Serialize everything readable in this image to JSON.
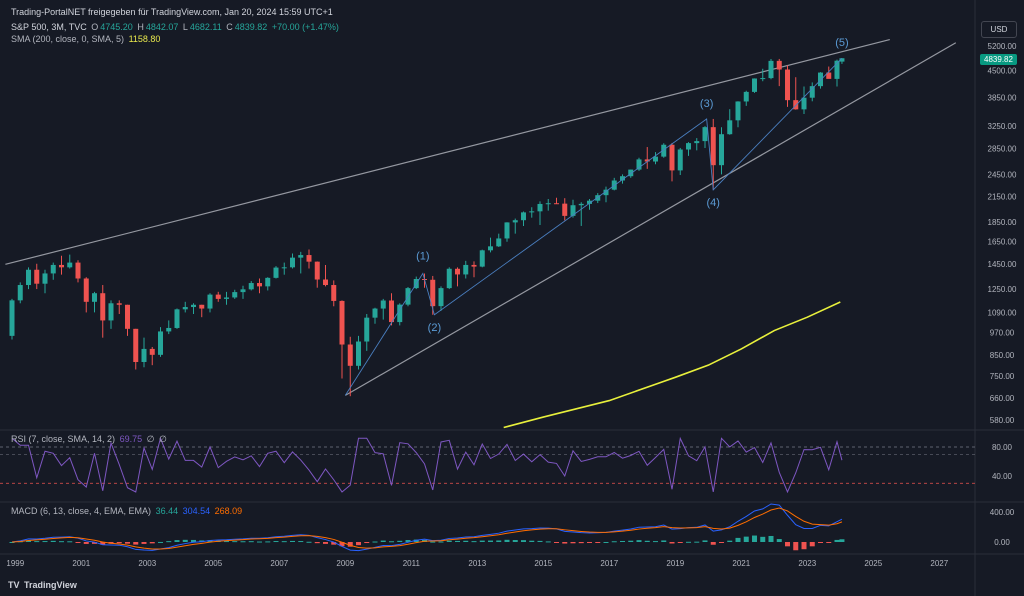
{
  "header": {
    "title": "Trading-PortalNET freigegeben für TradingView.com, Jan 20, 2024 15:59 UTC+1",
    "symbol": "S&P 500, 3M, TVC",
    "open_label": "O",
    "open": "4745.20",
    "high_label": "H",
    "high": "4842.07",
    "low_label": "L",
    "low": "4682.11",
    "close_label": "C",
    "close": "4839.82",
    "change": "+70.00 (+1.47%)",
    "sma_label": "SMA (200, close, 0, SMA, 5)",
    "sma_value": "1158.80"
  },
  "currency": "USD",
  "last_price": "4839.82",
  "rsi": {
    "label": "RSI (7, close, SMA, 14, 2)",
    "value": "69.75",
    "extra1": "∅",
    "extra2": "∅",
    "ticks": [
      "80.00",
      "40.00"
    ]
  },
  "macd": {
    "label": "MACD (6, 13, close, 4, EMA, EMA)",
    "hist": "36.44",
    "macd_value": "304.54",
    "signal_value": "268.09",
    "ticks": [
      "400.00",
      "0.00"
    ]
  },
  "brand": {
    "logo": "TV",
    "name": "TradingView"
  },
  "colors": {
    "background": "#161a25",
    "up": "#26a69a",
    "down": "#ef5350",
    "sma": "#e8f03c",
    "channel": "#9598a1",
    "wave": "#4a7fc0",
    "rsi": "#7e57c2",
    "macd": "#2962ff",
    "signal": "#ff6d00"
  },
  "chart_data": {
    "type": "candlestick",
    "y_scale": "log",
    "y_ticks": [
      5200,
      4500,
      3850,
      3250,
      2850,
      2450,
      2150,
      1850,
      1650,
      1450,
      1250,
      1090,
      970,
      850,
      750,
      660,
      580
    ],
    "x_ticks": [
      "1999",
      "2001",
      "2003",
      "2005",
      "2007",
      "2009",
      "2011",
      "2013",
      "2015",
      "2017",
      "2019",
      "2021",
      "2023",
      "2025",
      "2027"
    ],
    "wave_labels": [
      "(1)",
      "(2)",
      "(3)",
      "(4)",
      "(5)"
    ],
    "wave_points": [
      [
        2009.0,
        670
      ],
      [
        2011.35,
        1370
      ],
      [
        2011.7,
        1075
      ],
      [
        2019.95,
        3390
      ],
      [
        2020.15,
        2237
      ],
      [
        2024.05,
        4840
      ]
    ],
    "sma_points": [
      [
        2013.8,
        555
      ],
      [
        2015,
        590
      ],
      [
        2017,
        650
      ],
      [
        2019,
        745
      ],
      [
        2020,
        800
      ],
      [
        2021,
        880
      ],
      [
        2022,
        980
      ],
      [
        2023,
        1060
      ],
      [
        2024,
        1158.8
      ]
    ],
    "channel_upper": [
      [
        1998.7,
        1445
      ],
      [
        2025.5,
        5400
      ]
    ],
    "channel_lower": [
      [
        2009.0,
        670
      ],
      [
        2027.5,
        5300
      ]
    ],
    "candles": [
      [
        1998.9,
        950,
        1180,
        930,
        1170
      ],
      [
        1999.15,
        1170,
        1300,
        1150,
        1280
      ],
      [
        1999.4,
        1280,
        1420,
        1250,
        1400
      ],
      [
        1999.65,
        1400,
        1450,
        1250,
        1290
      ],
      [
        1999.9,
        1290,
        1400,
        1220,
        1370
      ],
      [
        2000.15,
        1370,
        1460,
        1320,
        1440
      ],
      [
        2000.4,
        1440,
        1520,
        1360,
        1420
      ],
      [
        2000.65,
        1420,
        1530,
        1410,
        1460
      ],
      [
        2000.9,
        1460,
        1480,
        1300,
        1330
      ],
      [
        2001.15,
        1330,
        1340,
        1090,
        1160
      ],
      [
        2001.4,
        1160,
        1230,
        1090,
        1220
      ],
      [
        2001.65,
        1220,
        1280,
        940,
        1040
      ],
      [
        2001.9,
        1040,
        1170,
        990,
        1150
      ],
      [
        2002.15,
        1150,
        1170,
        1080,
        1140
      ],
      [
        2002.4,
        1140,
        1140,
        950,
        990
      ],
      [
        2002.65,
        990,
        990,
        780,
        815
      ],
      [
        2002.9,
        815,
        940,
        790,
        880
      ],
      [
        2003.15,
        880,
        890,
        800,
        850
      ],
      [
        2003.4,
        850,
        1000,
        840,
        975
      ],
      [
        2003.65,
        975,
        1040,
        960,
        995
      ],
      [
        2003.9,
        995,
        1115,
        990,
        1110
      ],
      [
        2004.15,
        1110,
        1160,
        1090,
        1125
      ],
      [
        2004.4,
        1125,
        1150,
        1080,
        1140
      ],
      [
        2004.65,
        1140,
        1140,
        1060,
        1115
      ],
      [
        2004.9,
        1115,
        1220,
        1090,
        1210
      ],
      [
        2005.15,
        1210,
        1230,
        1160,
        1180
      ],
      [
        2005.4,
        1180,
        1230,
        1140,
        1190
      ],
      [
        2005.65,
        1190,
        1245,
        1180,
        1228
      ],
      [
        2005.9,
        1228,
        1275,
        1180,
        1248
      ],
      [
        2006.15,
        1248,
        1310,
        1240,
        1295
      ],
      [
        2006.4,
        1295,
        1330,
        1220,
        1270
      ],
      [
        2006.65,
        1270,
        1340,
        1240,
        1335
      ],
      [
        2006.9,
        1335,
        1430,
        1330,
        1418
      ],
      [
        2007.15,
        1418,
        1460,
        1360,
        1420
      ],
      [
        2007.4,
        1420,
        1540,
        1410,
        1503
      ],
      [
        2007.65,
        1503,
        1555,
        1370,
        1526
      ],
      [
        2007.9,
        1526,
        1576,
        1410,
        1468
      ],
      [
        2008.15,
        1468,
        1470,
        1260,
        1322
      ],
      [
        2008.4,
        1322,
        1440,
        1270,
        1280
      ],
      [
        2008.65,
        1280,
        1315,
        1130,
        1166
      ],
      [
        2008.9,
        1166,
        1170,
        740,
        903
      ],
      [
        2009.15,
        903,
        945,
        667,
        797
      ],
      [
        2009.4,
        797,
        950,
        780,
        919
      ],
      [
        2009.65,
        919,
        1080,
        870,
        1057
      ],
      [
        2009.9,
        1057,
        1120,
        1020,
        1115
      ],
      [
        2010.15,
        1115,
        1180,
        1045,
        1169
      ],
      [
        2010.4,
        1169,
        1220,
        1010,
        1030
      ],
      [
        2010.65,
        1030,
        1150,
        1010,
        1141
      ],
      [
        2010.9,
        1141,
        1265,
        1130,
        1257
      ],
      [
        2011.15,
        1257,
        1345,
        1250,
        1326
      ],
      [
        2011.4,
        1326,
        1370,
        1260,
        1320
      ],
      [
        2011.65,
        1320,
        1350,
        1075,
        1131
      ],
      [
        2011.9,
        1131,
        1270,
        1100,
        1257
      ],
      [
        2012.15,
        1257,
        1420,
        1250,
        1408
      ],
      [
        2012.4,
        1408,
        1420,
        1270,
        1362
      ],
      [
        2012.65,
        1362,
        1475,
        1330,
        1440
      ],
      [
        2012.9,
        1440,
        1470,
        1340,
        1426
      ],
      [
        2013.15,
        1426,
        1575,
        1420,
        1569
      ],
      [
        2013.4,
        1569,
        1690,
        1550,
        1606
      ],
      [
        2013.65,
        1606,
        1730,
        1600,
        1682
      ],
      [
        2013.9,
        1682,
        1850,
        1650,
        1848
      ],
      [
        2014.15,
        1848,
        1890,
        1730,
        1872
      ],
      [
        2014.4,
        1872,
        1970,
        1810,
        1960
      ],
      [
        2014.65,
        1960,
        2020,
        1900,
        1972
      ],
      [
        2014.9,
        1972,
        2090,
        1820,
        2059
      ],
      [
        2015.15,
        2059,
        2120,
        1980,
        2068
      ],
      [
        2015.4,
        2068,
        2135,
        2060,
        2063
      ],
      [
        2015.65,
        2063,
        2130,
        1870,
        1920
      ],
      [
        2015.9,
        1920,
        2110,
        1900,
        2044
      ],
      [
        2016.15,
        2044,
        2080,
        1810,
        2060
      ],
      [
        2016.4,
        2060,
        2120,
        1990,
        2099
      ],
      [
        2016.65,
        2099,
        2195,
        2070,
        2168
      ],
      [
        2016.9,
        2168,
        2280,
        2080,
        2239
      ],
      [
        2017.15,
        2239,
        2400,
        2230,
        2363
      ],
      [
        2017.4,
        2363,
        2450,
        2320,
        2423
      ],
      [
        2017.65,
        2423,
        2520,
        2400,
        2519
      ],
      [
        2017.9,
        2519,
        2700,
        2500,
        2674
      ],
      [
        2018.15,
        2674,
        2875,
        2530,
        2641
      ],
      [
        2018.4,
        2641,
        2790,
        2600,
        2718
      ],
      [
        2018.65,
        2718,
        2940,
        2700,
        2914
      ],
      [
        2018.9,
        2914,
        2945,
        2350,
        2507
      ],
      [
        2019.15,
        2507,
        2860,
        2440,
        2834
      ],
      [
        2019.4,
        2834,
        2960,
        2730,
        2942
      ],
      [
        2019.65,
        2942,
        3030,
        2820,
        2977
      ],
      [
        2019.9,
        2977,
        3250,
        2860,
        3231
      ],
      [
        2020.15,
        3231,
        3390,
        2237,
        2585
      ],
      [
        2020.4,
        2585,
        3230,
        2450,
        3100
      ],
      [
        2020.65,
        3100,
        3590,
        3090,
        3363
      ],
      [
        2020.9,
        3363,
        3760,
        3230,
        3756
      ],
      [
        2021.15,
        3756,
        4000,
        3660,
        3973
      ],
      [
        2021.4,
        3973,
        4300,
        3950,
        4298
      ],
      [
        2021.65,
        4298,
        4550,
        4230,
        4308
      ],
      [
        2021.9,
        4308,
        4820,
        4280,
        4766
      ],
      [
        2022.15,
        4766,
        4820,
        4110,
        4530
      ],
      [
        2022.4,
        4530,
        4640,
        3640,
        3785
      ],
      [
        2022.65,
        3785,
        4330,
        3580,
        3586
      ],
      [
        2022.9,
        3586,
        4100,
        3490,
        3840
      ],
      [
        2023.15,
        3840,
        4200,
        3760,
        4109
      ],
      [
        2023.4,
        4109,
        4460,
        4050,
        4450
      ],
      [
        2023.65,
        4450,
        4610,
        4300,
        4288
      ],
      [
        2023.9,
        4288,
        4800,
        4100,
        4770
      ],
      [
        2024.05,
        4745.2,
        4842.07,
        4682.11,
        4839.82
      ]
    ]
  }
}
